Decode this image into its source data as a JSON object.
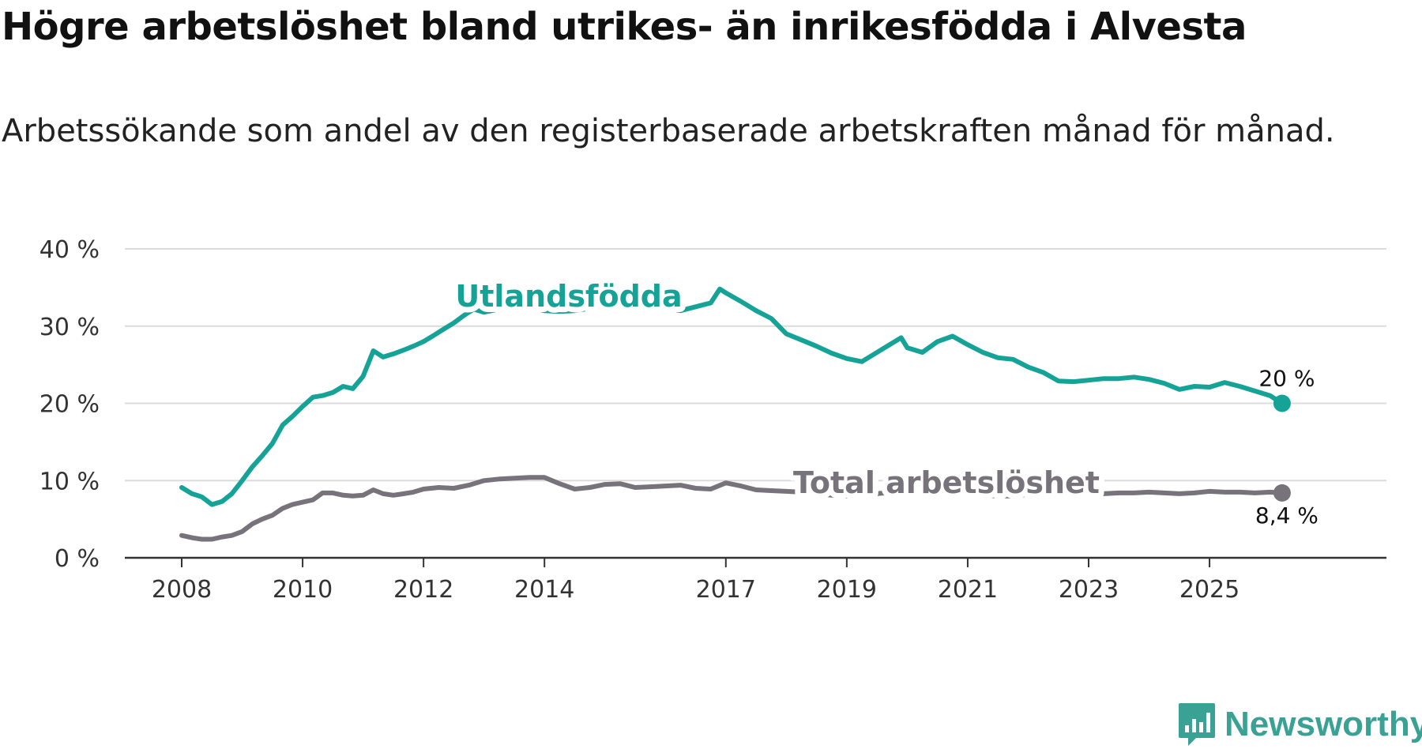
{
  "title": "Högre arbetslöshet bland utrikes- än inrikesfödda i Alvesta",
  "subtitle": "Arbetssökande som andel av den registerbaserade arbetskraften månad för månad.",
  "brand": {
    "name": "Newsworthy",
    "color": "#3aa195"
  },
  "chart_data": {
    "type": "line",
    "title": "Högre arbetslöshet bland utrikes- än inrikesfödda i Alvesta",
    "xlabel": "",
    "ylabel": "",
    "xlim": [
      2008.0,
      2026.75
    ],
    "ylim": [
      0,
      40
    ],
    "grid": true,
    "y_ticks": [
      0,
      10,
      20,
      30,
      40
    ],
    "y_tick_labels": [
      "0 %",
      "10 %",
      "20 %",
      "30 %",
      "40 %"
    ],
    "x_ticks": [
      2008,
      2010,
      2012,
      2014,
      2017,
      2019,
      2021,
      2023,
      2025
    ],
    "x_tick_labels": [
      "2008",
      "2010",
      "2012",
      "2014",
      "2017",
      "2019",
      "2021",
      "2023",
      "2025"
    ],
    "series": [
      {
        "name": "Utlandsfödda",
        "color": "#15a397",
        "end_label": "20 %",
        "x": [
          2008.0,
          2008.17,
          2008.33,
          2008.5,
          2008.67,
          2008.83,
          2009.0,
          2009.17,
          2009.33,
          2009.5,
          2009.67,
          2009.83,
          2010.0,
          2010.17,
          2010.33,
          2010.5,
          2010.67,
          2010.83,
          2011.0,
          2011.17,
          2011.33,
          2011.5,
          2011.67,
          2011.83,
          2012.0,
          2012.17,
          2012.33,
          2012.5,
          2012.67,
          2012.83,
          2013.0,
          2013.25,
          2013.5,
          2013.75,
          2014.0,
          2014.25,
          2014.5,
          2014.75,
          2015.0,
          2015.25,
          2015.5,
          2015.75,
          2016.0,
          2016.25,
          2016.5,
          2016.75,
          2016.9,
          2017.0,
          2017.25,
          2017.5,
          2017.75,
          2018.0,
          2018.25,
          2018.5,
          2018.75,
          2019.0,
          2019.25,
          2019.5,
          2019.75,
          2019.9,
          2020.0,
          2020.25,
          2020.5,
          2020.75,
          2021.0,
          2021.25,
          2021.5,
          2021.75,
          2022.0,
          2022.25,
          2022.5,
          2022.75,
          2023.0,
          2023.25,
          2023.5,
          2023.75,
          2024.0,
          2024.25,
          2024.5,
          2024.75,
          2025.0,
          2025.25,
          2025.5,
          2025.75,
          2026.0,
          2026.2
        ],
        "values": [
          9.1,
          8.3,
          7.9,
          6.9,
          7.3,
          8.3,
          10.0,
          11.8,
          13.2,
          14.8,
          17.2,
          18.3,
          19.6,
          20.8,
          21.0,
          21.4,
          22.2,
          21.9,
          23.5,
          26.8,
          26.0,
          26.4,
          26.9,
          27.4,
          28.0,
          28.8,
          29.6,
          30.4,
          31.4,
          32.2,
          31.8,
          32.2,
          32.6,
          32.5,
          32.0,
          31.9,
          32.0,
          32.3,
          32.6,
          32.8,
          33.0,
          32.6,
          32.4,
          32.0,
          32.5,
          33.0,
          34.8,
          34.3,
          33.2,
          32.0,
          31.0,
          29.0,
          28.2,
          27.4,
          26.5,
          25.8,
          25.4,
          26.6,
          27.8,
          28.5,
          27.2,
          26.6,
          28.0,
          28.7,
          27.6,
          26.6,
          25.9,
          25.7,
          24.7,
          24.0,
          22.9,
          22.8,
          23.0,
          23.2,
          23.2,
          23.4,
          23.1,
          22.6,
          21.8,
          22.2,
          22.1,
          22.7,
          22.2,
          21.6,
          21.0,
          20.0
        ]
      },
      {
        "name": "Total arbetslöshet",
        "color": "#76737a",
        "end_label": "8,4 %",
        "x": [
          2008.0,
          2008.17,
          2008.33,
          2008.5,
          2008.67,
          2008.83,
          2009.0,
          2009.17,
          2009.33,
          2009.5,
          2009.67,
          2009.83,
          2010.0,
          2010.17,
          2010.33,
          2010.5,
          2010.67,
          2010.83,
          2011.0,
          2011.17,
          2011.33,
          2011.5,
          2011.67,
          2011.83,
          2012.0,
          2012.25,
          2012.5,
          2012.75,
          2013.0,
          2013.25,
          2013.5,
          2013.75,
          2014.0,
          2014.25,
          2014.5,
          2014.75,
          2015.0,
          2015.25,
          2015.5,
          2015.75,
          2016.0,
          2016.25,
          2016.5,
          2016.75,
          2017.0,
          2017.25,
          2017.5,
          2017.75,
          2018.0,
          2018.25,
          2018.5,
          2018.75,
          2019.0,
          2019.25,
          2019.5,
          2019.75,
          2020.0,
          2020.25,
          2020.5,
          2020.75,
          2021.0,
          2021.25,
          2021.5,
          2021.75,
          2022.0,
          2022.25,
          2022.5,
          2022.75,
          2023.0,
          2023.25,
          2023.5,
          2023.75,
          2024.0,
          2024.25,
          2024.5,
          2024.75,
          2025.0,
          2025.25,
          2025.5,
          2025.75,
          2026.0,
          2026.2
        ],
        "values": [
          2.9,
          2.6,
          2.4,
          2.4,
          2.7,
          2.9,
          3.4,
          4.4,
          5.0,
          5.5,
          6.4,
          6.9,
          7.2,
          7.5,
          8.4,
          8.4,
          8.1,
          8.0,
          8.1,
          8.8,
          8.3,
          8.1,
          8.3,
          8.5,
          8.9,
          9.1,
          9.0,
          9.4,
          10.0,
          10.2,
          10.3,
          10.4,
          10.4,
          9.6,
          8.9,
          9.1,
          9.5,
          9.6,
          9.1,
          9.2,
          9.3,
          9.4,
          9.0,
          8.9,
          9.7,
          9.3,
          8.8,
          8.7,
          8.6,
          8.5,
          8.3,
          8.1,
          8.0,
          8.1,
          8.3,
          8.5,
          8.6,
          8.5,
          8.4,
          8.4,
          8.3,
          8.1,
          8.0,
          8.0,
          8.2,
          8.2,
          8.3,
          8.3,
          8.3,
          8.3,
          8.4,
          8.4,
          8.5,
          8.4,
          8.3,
          8.4,
          8.6,
          8.5,
          8.5,
          8.4,
          8.5,
          8.4
        ]
      }
    ],
    "annotations": [
      {
        "series": "Utlandsfödda",
        "text": "Utlandsfödda",
        "at_x": 2014.0,
        "placement": "above line"
      },
      {
        "series": "Total arbetslöshet",
        "text": "Total arbetslöshet",
        "at_x": 2019.0,
        "placement": "on line"
      }
    ]
  }
}
